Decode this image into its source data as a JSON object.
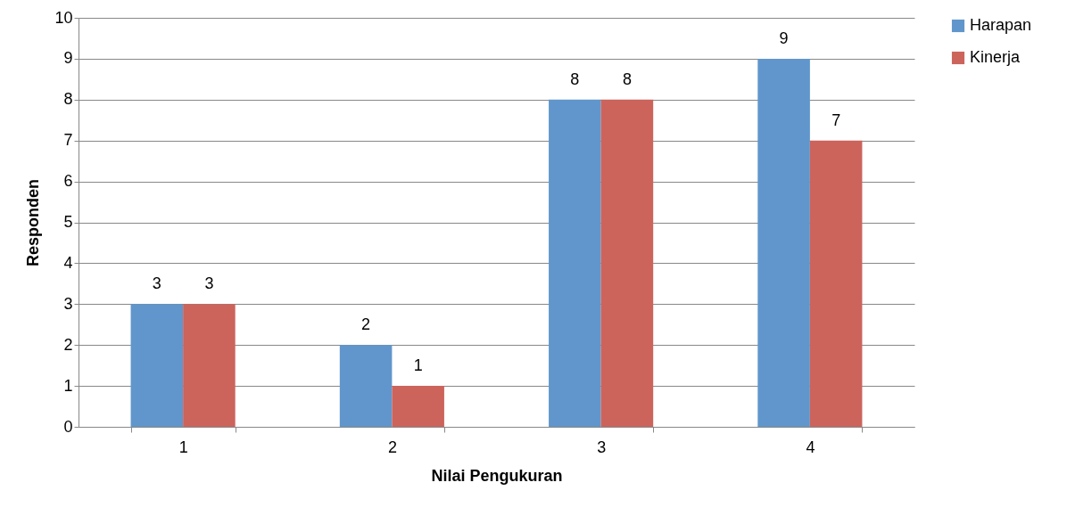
{
  "chart_data": {
    "type": "bar",
    "xlabel": "Nilai Pengukuran",
    "ylabel": "Responden",
    "categories": [
      "1",
      "2",
      "3",
      "4"
    ],
    "series": [
      {
        "name": "Harapan",
        "color": "#6096cb",
        "values": [
          3,
          2,
          8,
          9
        ]
      },
      {
        "name": "Kinerja",
        "color": "#cc645c",
        "values": [
          3,
          1,
          8,
          7
        ]
      }
    ],
    "ylim": [
      0,
      10
    ],
    "yticks": [
      0,
      1,
      2,
      3,
      4,
      5,
      6,
      7,
      8,
      9,
      10
    ],
    "grid": "y",
    "legend": "right",
    "data_labels": true
  }
}
